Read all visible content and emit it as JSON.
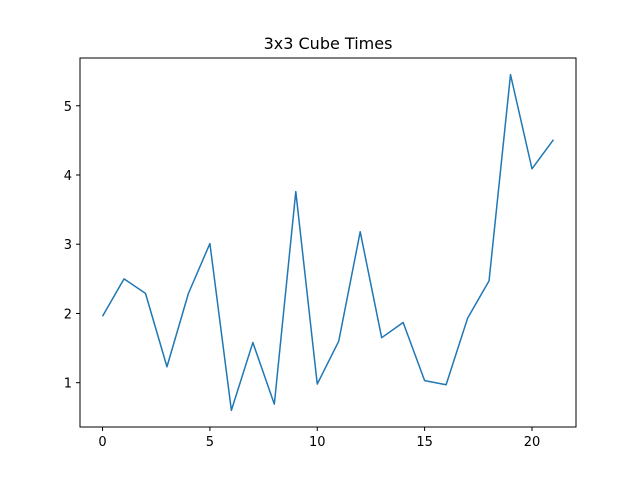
{
  "chart_data": {
    "type": "line",
    "title": "3x3 Cube Times",
    "xlabel": "",
    "ylabel": "",
    "xlim": [
      -1.05,
      22.05
    ],
    "ylim": [
      0.36,
      5.69
    ],
    "xticks": [
      0,
      5,
      10,
      15,
      20
    ],
    "yticks": [
      1,
      2,
      3,
      4,
      5
    ],
    "grid": false,
    "series": [
      {
        "color": "#1f77b4",
        "x": [
          0,
          1,
          2,
          3,
          4,
          5,
          6,
          7,
          8,
          9,
          10,
          11,
          12,
          13,
          14,
          15,
          16,
          17,
          18,
          19,
          20,
          21
        ],
        "y": [
          1.96,
          2.5,
          2.29,
          1.23,
          2.29,
          3.01,
          0.6,
          1.58,
          0.69,
          3.76,
          0.98,
          1.6,
          3.18,
          1.65,
          1.87,
          1.03,
          0.97,
          1.93,
          2.47,
          5.45,
          4.09,
          4.51
        ]
      }
    ]
  }
}
